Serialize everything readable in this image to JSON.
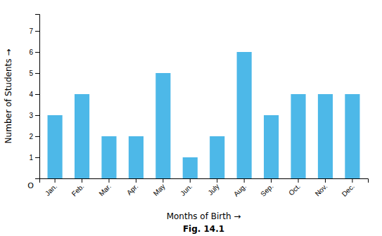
{
  "chart_data": {
    "type": "bar",
    "categories": [
      "Jan.",
      "Feb.",
      "Mar.",
      "Apr.",
      "May",
      "Jun.",
      "July",
      "Aug.",
      "Sep.",
      "Oct.",
      "Nov.",
      "Dec."
    ],
    "values": [
      3,
      4,
      2,
      2,
      5,
      1,
      2,
      6,
      3,
      4,
      4,
      4
    ],
    "color": "#4db8e8",
    "xlabel": "Months of Birth →",
    "ylabel": "Number of Students →",
    "caption": "Fig. 14.1",
    "annotations": [
      "O"
    ],
    "ylim": [
      0,
      7.8
    ],
    "yticks": [
      1,
      2,
      3,
      4,
      5,
      6,
      7
    ],
    "grid": false
  }
}
